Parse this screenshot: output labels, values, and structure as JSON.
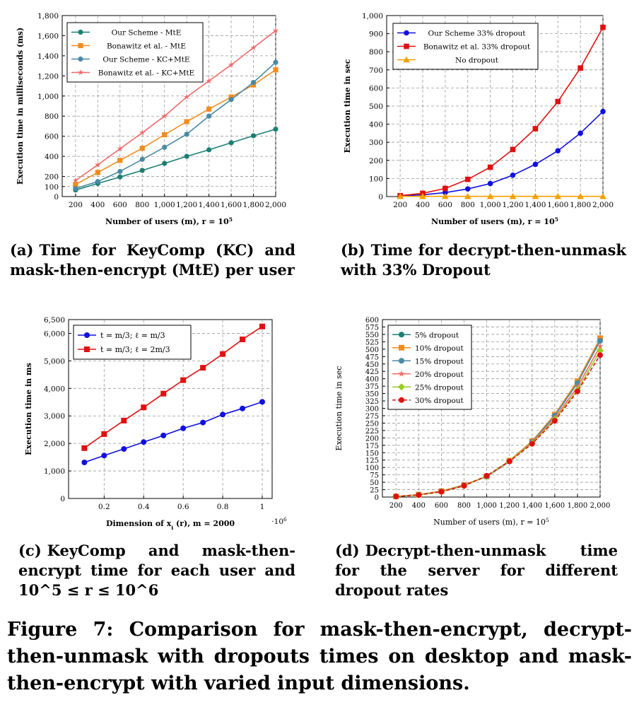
{
  "captions": {
    "a_label": "(a)",
    "a": "Time for KeyComp (KC) and mask-then-encrypt (MtE) per user",
    "b_label": "(b)",
    "b": "Time for decrypt-then-unmask with 33% Dropout",
    "c_label": "(c)",
    "c": "KeyComp and mask-then-encrypt time for each user and 10^5 ≤ r ≤ 10^6",
    "d_label": "(d)",
    "d": "Decrypt-then-unmask time for the server for different dropout rates"
  },
  "figure_caption": "Figure 7: Comparison for mask-then-encrypt, decrypt-then-unmask with dropouts times on desktop and mask-then-encrypt with varied input dimensions.",
  "chart_data": [
    {
      "id": "a",
      "type": "line",
      "xlabel": "Number of users (m), r = 10^5",
      "ylabel": "Execution time in milliseconds (ms)",
      "x": [
        200,
        400,
        600,
        800,
        1000,
        1200,
        1400,
        1600,
        1800,
        2000
      ],
      "x_ticks": [
        "200",
        "400",
        "600",
        "800",
        "1,000",
        "1,200",
        "1,400",
        "1,600",
        "1,800",
        "2,000"
      ],
      "y_ticks": [
        "0",
        "100",
        "200",
        "400",
        "600",
        "800",
        "1,000",
        "1,200",
        "1,400",
        "1,600",
        "1,800"
      ],
      "ylim": [
        0,
        1800
      ],
      "grid": true,
      "legend_position": "top-left",
      "series": [
        {
          "name": "Our Scheme - MtE",
          "color": "#1b7f73",
          "marker": "circle",
          "values": [
            65,
            130,
            195,
            260,
            330,
            400,
            465,
            535,
            605,
            670
          ]
        },
        {
          "name": "Bonawitz et al. - MtE",
          "color": "#f28c1e",
          "marker": "square",
          "values": [
            120,
            240,
            360,
            480,
            615,
            745,
            870,
            990,
            1110,
            1260
          ]
        },
        {
          "name": "Our Scheme - KC+MtE",
          "color": "#4a8aa5",
          "marker": "circle",
          "values": [
            80,
            150,
            250,
            370,
            490,
            620,
            800,
            965,
            1135,
            1335
          ]
        },
        {
          "name": "Bonawitz et al. - KC+MtE",
          "color": "#f26a6a",
          "marker": "star",
          "values": [
            160,
            315,
            475,
            635,
            800,
            990,
            1150,
            1310,
            1480,
            1650
          ]
        }
      ]
    },
    {
      "id": "b",
      "type": "line",
      "xlabel": "Number of users (m), r = 10^5",
      "ylabel": "Execution time in sec",
      "x": [
        200,
        400,
        600,
        800,
        1000,
        1200,
        1400,
        1600,
        1800,
        2000
      ],
      "x_ticks": [
        "200",
        "400",
        "600",
        "800",
        "1,000",
        "1,200",
        "1,400",
        "1,600",
        "1,800",
        "2,000"
      ],
      "y_ticks": [
        "0",
        "100",
        "200",
        "300",
        "400",
        "500",
        "600",
        "700",
        "800",
        "900",
        "1,000"
      ],
      "ylim": [
        0,
        1000
      ],
      "grid": true,
      "legend_position": "top-left",
      "series": [
        {
          "name": "Our Scheme 33% dropout",
          "color": "#1010e0",
          "marker": "circle",
          "values": [
            3,
            10,
            22,
            42,
            72,
            118,
            178,
            253,
            350,
            470
          ]
        },
        {
          "name": "Bonawitz et al. 33% dropout",
          "color": "#e01010",
          "marker": "square",
          "values": [
            5,
            18,
            45,
            95,
            162,
            260,
            375,
            525,
            710,
            935
          ]
        },
        {
          "name": "No dropout",
          "color": "#f5a000",
          "marker": "triangle",
          "values": [
            1,
            1,
            1,
            1,
            1,
            1,
            1,
            1,
            1,
            1
          ]
        }
      ]
    },
    {
      "id": "c",
      "type": "line",
      "xlabel": "Dimension of x_i (r), m = 2000",
      "x_multiplier": "·10^6",
      "ylabel": "Execution time in ms",
      "x": [
        0.1,
        0.2,
        0.3,
        0.4,
        0.5,
        0.6,
        0.7,
        0.8,
        0.9,
        1.0
      ],
      "x_ticks": [
        "0.2",
        "0.4",
        "0.6",
        "0.8",
        "1"
      ],
      "x_tick_values": [
        0.2,
        0.4,
        0.6,
        0.8,
        1.0
      ],
      "xlim": [
        0.02,
        1.05
      ],
      "y_ticks": [
        "0",
        "1,000",
        "2,000",
        "3,000",
        "4,000",
        "5,000",
        "6,000",
        "6,500"
      ],
      "y_tick_values": [
        0,
        1000,
        2000,
        3000,
        4000,
        5000,
        6000,
        6500
      ],
      "ylim": [
        0,
        6500
      ],
      "grid": true,
      "legend_position": "top-left",
      "series": [
        {
          "name": "t = m/3; ℓ = m/3",
          "color": "#1010e0",
          "marker": "circle",
          "values": [
            1310,
            1560,
            1800,
            2050,
            2290,
            2550,
            2760,
            3050,
            3270,
            3510
          ]
        },
        {
          "name": "t = m/3; ℓ = 2m/3",
          "color": "#e01010",
          "marker": "square",
          "values": [
            1830,
            2340,
            2830,
            3310,
            3810,
            4300,
            4750,
            5250,
            5780,
            6250
          ]
        }
      ]
    },
    {
      "id": "d",
      "type": "line",
      "xlabel": "Number of users (m), r = 10^5",
      "ylabel": "Execution time in sec",
      "x": [
        200,
        400,
        600,
        800,
        1000,
        1200,
        1400,
        1600,
        1800,
        2000
      ],
      "x_ticks": [
        "200",
        "400",
        "600",
        "800",
        "1,000",
        "1,200",
        "1,400",
        "1,600",
        "1,800",
        "2,000"
      ],
      "y_ticks": [
        "0",
        "25",
        "50",
        "75",
        "100",
        "125",
        "150",
        "175",
        "200",
        "225",
        "250",
        "275",
        "300",
        "325",
        "350",
        "375",
        "400",
        "425",
        "450",
        "475",
        "500",
        "525",
        "550",
        "575",
        "600"
      ],
      "ylim": [
        0,
        600
      ],
      "grid": true,
      "legend_position": "top-left",
      "series": [
        {
          "name": "5% dropout",
          "color": "#1b7f73",
          "marker": "circle",
          "values": [
            2,
            8,
            20,
            40,
            70,
            122,
            188,
            278,
            390,
            535
          ]
        },
        {
          "name": "10% dropout",
          "color": "#f28c1e",
          "marker": "square",
          "values": [
            2,
            8,
            20,
            41,
            70,
            123,
            189,
            279,
            392,
            537
          ]
        },
        {
          "name": "15% dropout",
          "color": "#4a8aa5",
          "marker": "circle",
          "values": [
            2,
            8,
            19,
            40,
            69,
            120,
            186,
            275,
            385,
            528
          ]
        },
        {
          "name": "20% dropout",
          "color": "#f26a6a",
          "marker": "star",
          "values": [
            2,
            8,
            19,
            39,
            70,
            121,
            184,
            267,
            372,
            510
          ]
        },
        {
          "name": "25% dropout",
          "color": "#9acd20",
          "marker": "diamond",
          "values": [
            2,
            7,
            18,
            38,
            71,
            122,
            182,
            262,
            362,
            495
          ]
        },
        {
          "name": "30% dropout",
          "color": "#e01010",
          "marker": "circle",
          "dashed": true,
          "values": [
            2,
            7,
            18,
            38,
            72,
            121,
            180,
            258,
            357,
            480
          ]
        }
      ]
    }
  ]
}
